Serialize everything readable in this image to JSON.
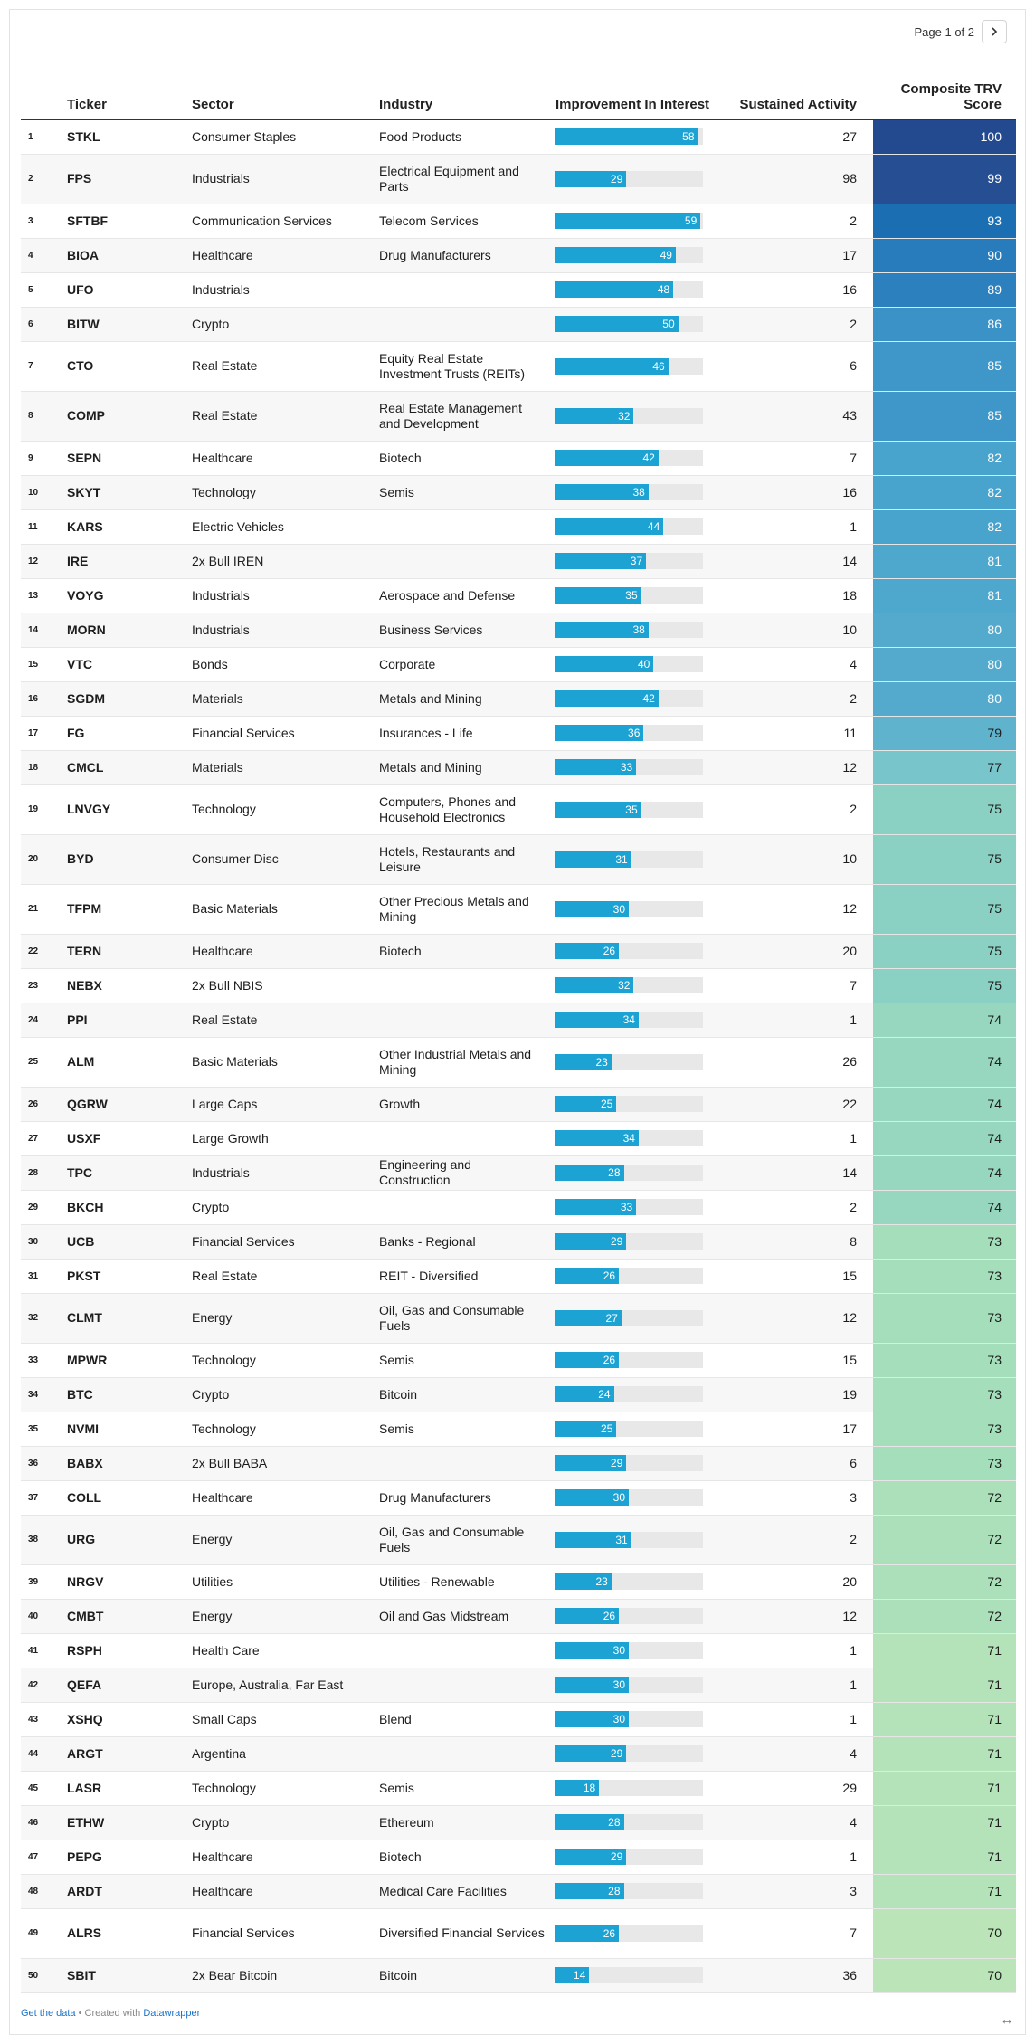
{
  "pager": {
    "label": "Page 1 of 2"
  },
  "columns": {
    "rank": "",
    "ticker": "Ticker",
    "sector": "Sector",
    "industry": "Industry",
    "improvement": "Improvement In Interest",
    "sustained": "Sustained Activity",
    "score": "Composite TRV Score"
  },
  "bar_max": 60,
  "colors": {
    "bar": "#1ca3d4",
    "bar_track": "#e8e8e8",
    "link": "#1a73c8"
  },
  "rows": [
    {
      "rank": "1",
      "ticker": "STKL",
      "sector": "Consumer Staples",
      "industry": "Food Products",
      "improvement": 58,
      "sustained": "27",
      "score": 100
    },
    {
      "rank": "2",
      "ticker": "FPS",
      "sector": "Industrials",
      "industry": "Electrical Equipment and Parts",
      "improvement": 29,
      "sustained": "98",
      "score": 99
    },
    {
      "rank": "3",
      "ticker": "SFTBF",
      "sector": "Communication Services",
      "industry": "Telecom Services",
      "improvement": 59,
      "sustained": "2",
      "score": 93
    },
    {
      "rank": "4",
      "ticker": "BIOA",
      "sector": "Healthcare",
      "industry": "Drug Manufacturers",
      "improvement": 49,
      "sustained": "17",
      "score": 90
    },
    {
      "rank": "5",
      "ticker": "UFO",
      "sector": "Industrials",
      "industry": "",
      "improvement": 48,
      "sustained": "16",
      "score": 89
    },
    {
      "rank": "6",
      "ticker": "BITW",
      "sector": "Crypto",
      "industry": "",
      "improvement": 50,
      "sustained": "2",
      "score": 86
    },
    {
      "rank": "7",
      "ticker": "CTO",
      "sector": "Real Estate",
      "industry": "Equity Real Estate Investment Trusts (REITs)",
      "improvement": 46,
      "sustained": "6",
      "score": 85
    },
    {
      "rank": "8",
      "ticker": "COMP",
      "sector": "Real Estate",
      "industry": "Real Estate Management and Development",
      "improvement": 32,
      "sustained": "43",
      "score": 85
    },
    {
      "rank": "9",
      "ticker": "SEPN",
      "sector": "Healthcare",
      "industry": "Biotech",
      "improvement": 42,
      "sustained": "7",
      "score": 82
    },
    {
      "rank": "10",
      "ticker": "SKYT",
      "sector": "Technology",
      "industry": "Semis",
      "improvement": 38,
      "sustained": "16",
      "score": 82
    },
    {
      "rank": "11",
      "ticker": "KARS",
      "sector": "Electric Vehicles",
      "industry": "",
      "improvement": 44,
      "sustained": "1",
      "score": 82
    },
    {
      "rank": "12",
      "ticker": "IRE",
      "sector": "2x Bull IREN",
      "industry": "",
      "improvement": 37,
      "sustained": "14",
      "score": 81
    },
    {
      "rank": "13",
      "ticker": "VOYG",
      "sector": "Industrials",
      "industry": "Aerospace and Defense",
      "improvement": 35,
      "sustained": "18",
      "score": 81
    },
    {
      "rank": "14",
      "ticker": "MORN",
      "sector": "Industrials",
      "industry": "Business Services",
      "improvement": 38,
      "sustained": "10",
      "score": 80
    },
    {
      "rank": "15",
      "ticker": "VTC",
      "sector": "Bonds",
      "industry": "Corporate",
      "improvement": 40,
      "sustained": "4",
      "score": 80
    },
    {
      "rank": "16",
      "ticker": "SGDM",
      "sector": "Materials",
      "industry": "Metals and Mining",
      "improvement": 42,
      "sustained": "2",
      "score": 80
    },
    {
      "rank": "17",
      "ticker": "FG",
      "sector": "Financial Services",
      "industry": "Insurances - Life",
      "improvement": 36,
      "sustained": "11",
      "score": 79
    },
    {
      "rank": "18",
      "ticker": "CMCL",
      "sector": "Materials",
      "industry": "Metals and Mining",
      "improvement": 33,
      "sustained": "12",
      "score": 77
    },
    {
      "rank": "19",
      "ticker": "LNVGY",
      "sector": "Technology",
      "industry": "Computers, Phones and Household Electronics",
      "improvement": 35,
      "sustained": "2",
      "score": 75
    },
    {
      "rank": "20",
      "ticker": "BYD",
      "sector": "Consumer Disc",
      "industry": "Hotels, Restaurants and Leisure",
      "improvement": 31,
      "sustained": "10",
      "score": 75
    },
    {
      "rank": "21",
      "ticker": "TFPM",
      "sector": "Basic Materials",
      "industry": "Other Precious Metals and Mining",
      "improvement": 30,
      "sustained": "12",
      "score": 75
    },
    {
      "rank": "22",
      "ticker": "TERN",
      "sector": "Healthcare",
      "industry": "Biotech",
      "improvement": 26,
      "sustained": "20",
      "score": 75
    },
    {
      "rank": "23",
      "ticker": "NEBX",
      "sector": "2x Bull NBIS",
      "industry": "",
      "improvement": 32,
      "sustained": "7",
      "score": 75
    },
    {
      "rank": "24",
      "ticker": "PPI",
      "sector": "Real Estate",
      "industry": "",
      "improvement": 34,
      "sustained": "1",
      "score": 74
    },
    {
      "rank": "25",
      "ticker": "ALM",
      "sector": "Basic Materials",
      "industry": "Other Industrial Metals and Mining",
      "improvement": 23,
      "sustained": "26",
      "score": 74
    },
    {
      "rank": "26",
      "ticker": "QGRW",
      "sector": "Large Caps",
      "industry": "Growth",
      "improvement": 25,
      "sustained": "22",
      "score": 74
    },
    {
      "rank": "27",
      "ticker": "USXF",
      "sector": "Large Growth",
      "industry": "",
      "improvement": 34,
      "sustained": "1",
      "score": 74
    },
    {
      "rank": "28",
      "ticker": "TPC",
      "sector": "Industrials",
      "industry": "Engineering and Construction",
      "improvement": 28,
      "sustained": "14",
      "score": 74
    },
    {
      "rank": "29",
      "ticker": "BKCH",
      "sector": "Crypto",
      "industry": "",
      "improvement": 33,
      "sustained": "2",
      "score": 74
    },
    {
      "rank": "30",
      "ticker": "UCB",
      "sector": "Financial Services",
      "industry": "Banks - Regional",
      "improvement": 29,
      "sustained": "8",
      "score": 73
    },
    {
      "rank": "31",
      "ticker": "PKST",
      "sector": "Real Estate",
      "industry": "REIT - Diversified",
      "improvement": 26,
      "sustained": "15",
      "score": 73
    },
    {
      "rank": "32",
      "ticker": "CLMT",
      "sector": "Energy",
      "industry": "Oil, Gas and Consumable Fuels",
      "improvement": 27,
      "sustained": "12",
      "score": 73
    },
    {
      "rank": "33",
      "ticker": "MPWR",
      "sector": "Technology",
      "industry": "Semis",
      "improvement": 26,
      "sustained": "15",
      "score": 73
    },
    {
      "rank": "34",
      "ticker": "BTC",
      "sector": "Crypto",
      "industry": "Bitcoin",
      "improvement": 24,
      "sustained": "19",
      "score": 73
    },
    {
      "rank": "35",
      "ticker": "NVMI",
      "sector": "Technology",
      "industry": "Semis",
      "improvement": 25,
      "sustained": "17",
      "score": 73
    },
    {
      "rank": "36",
      "ticker": "BABX",
      "sector": "2x Bull BABA",
      "industry": "",
      "improvement": 29,
      "sustained": "6",
      "score": 73
    },
    {
      "rank": "37",
      "ticker": "COLL",
      "sector": "Healthcare",
      "industry": "Drug Manufacturers",
      "improvement": 30,
      "sustained": "3",
      "score": 72
    },
    {
      "rank": "38",
      "ticker": "URG",
      "sector": "Energy",
      "industry": "Oil, Gas and Consumable Fuels",
      "improvement": 31,
      "sustained": "2",
      "score": 72
    },
    {
      "rank": "39",
      "ticker": "NRGV",
      "sector": "Utilities",
      "industry": "Utilities - Renewable",
      "improvement": 23,
      "sustained": "20",
      "score": 72
    },
    {
      "rank": "40",
      "ticker": "CMBT",
      "sector": "Energy",
      "industry": "Oil and Gas Midstream",
      "improvement": 26,
      "sustained": "12",
      "score": 72
    },
    {
      "rank": "41",
      "ticker": "RSPH",
      "sector": "Health Care",
      "industry": "",
      "improvement": 30,
      "sustained": "1",
      "score": 71
    },
    {
      "rank": "42",
      "ticker": "QEFA",
      "sector": "Europe, Australia, Far East",
      "industry": "",
      "improvement": 30,
      "sustained": "1",
      "score": 71
    },
    {
      "rank": "43",
      "ticker": "XSHQ",
      "sector": "Small Caps",
      "industry": "Blend",
      "improvement": 30,
      "sustained": "1",
      "score": 71
    },
    {
      "rank": "44",
      "ticker": "ARGT",
      "sector": "Argentina",
      "industry": "",
      "improvement": 29,
      "sustained": "4",
      "score": 71
    },
    {
      "rank": "45",
      "ticker": "LASR",
      "sector": "Technology",
      "industry": "Semis",
      "improvement": 18,
      "sustained": "29",
      "score": 71
    },
    {
      "rank": "46",
      "ticker": "ETHW",
      "sector": "Crypto",
      "industry": "Ethereum",
      "improvement": 28,
      "sustained": "4",
      "score": 71
    },
    {
      "rank": "47",
      "ticker": "PEPG",
      "sector": "Healthcare",
      "industry": "Biotech",
      "improvement": 29,
      "sustained": "1",
      "score": 71
    },
    {
      "rank": "48",
      "ticker": "ARDT",
      "sector": "Healthcare",
      "industry": "Medical Care Facilities",
      "improvement": 28,
      "sustained": "3",
      "score": 71
    },
    {
      "rank": "49",
      "ticker": "ALRS",
      "sector": "Financial Services",
      "industry": "Diversified Financial Services",
      "improvement": 26,
      "sustained": "7",
      "score": 70
    },
    {
      "rank": "50",
      "ticker": "SBIT",
      "sector": "2x Bear Bitcoin",
      "industry": "Bitcoin",
      "improvement": 14,
      "sustained": "36",
      "score": 70
    }
  ],
  "footer": {
    "data_link": "Get the data",
    "separator": " • Created with ",
    "tool_link": "Datawrapper"
  },
  "icons": {
    "pager_next": "chevron-right-icon",
    "expand": "expand-horizontal-icon"
  }
}
